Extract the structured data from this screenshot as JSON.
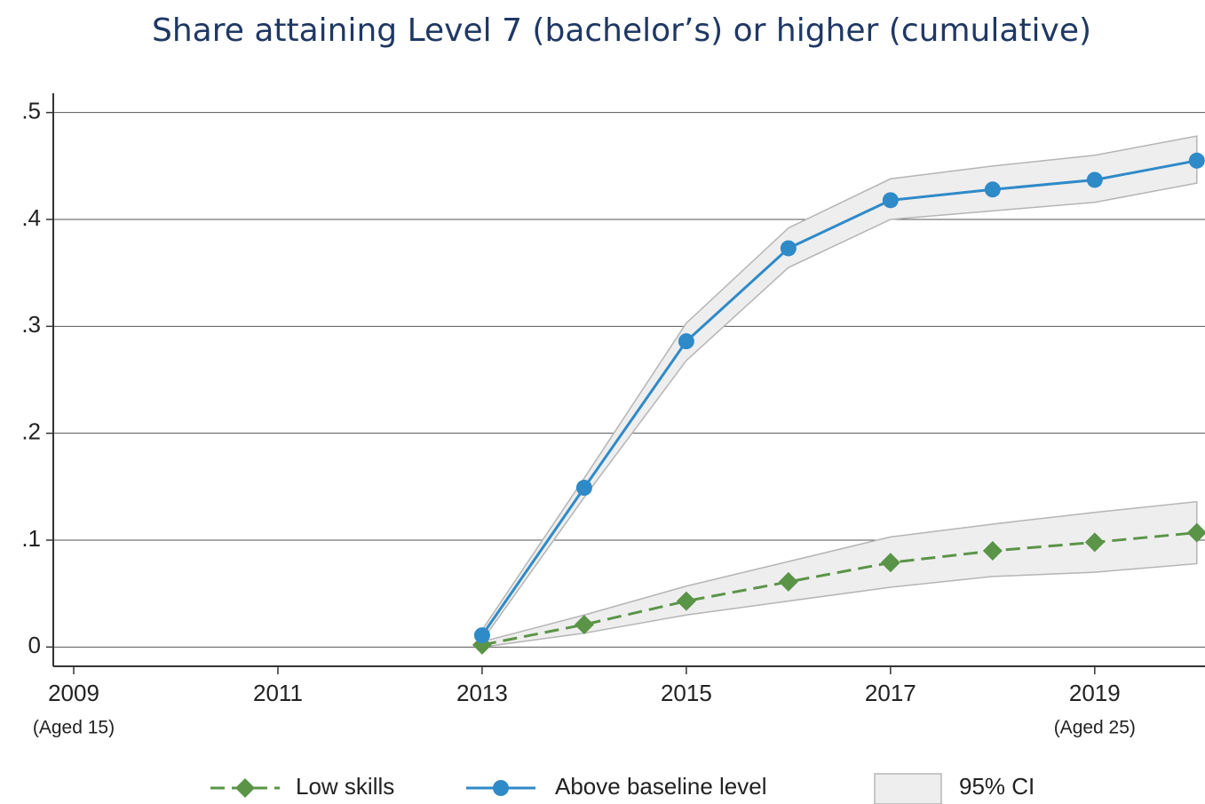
{
  "chart_data": {
    "type": "line",
    "title": "Share attaining Level 7 (bachelor’s) or higher (cumulative)",
    "x": [
      2013,
      2014,
      2015,
      2016,
      2017,
      2018,
      2019,
      2020
    ],
    "series": [
      {
        "name": "Low skills",
        "color": "#5a9447",
        "marker": "diamond",
        "dashed": true,
        "values": [
          0.002,
          0.021,
          0.043,
          0.061,
          0.079,
          0.09,
          0.098,
          0.107
        ],
        "ci_lower": [
          0.0,
          0.013,
          0.03,
          0.043,
          0.056,
          0.066,
          0.07,
          0.078
        ],
        "ci_upper": [
          0.005,
          0.03,
          0.057,
          0.08,
          0.103,
          0.115,
          0.126,
          0.136
        ]
      },
      {
        "name": "Above baseline level",
        "color": "#2f8ac8",
        "marker": "circle",
        "dashed": false,
        "values": [
          0.011,
          0.149,
          0.286,
          0.373,
          0.418,
          0.428,
          0.437,
          0.455
        ],
        "ci_lower": [
          0.006,
          0.14,
          0.268,
          0.355,
          0.4,
          0.408,
          0.416,
          0.434
        ],
        "ci_upper": [
          0.016,
          0.158,
          0.303,
          0.392,
          0.438,
          0.45,
          0.46,
          0.478
        ]
      }
    ],
    "ci_label": "95% CI",
    "ci_color": "#eeeeee",
    "xlim": [
      2008.8,
      2020.08
    ],
    "xticks": [
      2009,
      2011,
      2013,
      2015,
      2017,
      2019
    ],
    "ylim": [
      -0.018,
      0.518
    ],
    "yticks": [
      0,
      {
        "value": 0.1,
        "label": ".1"
      },
      {
        "value": 0.2,
        "label": ".2"
      },
      {
        "value": 0.3,
        "label": ".3"
      },
      {
        "value": 0.4,
        "label": ".4"
      },
      {
        "value": 0.5,
        "label": ".5"
      }
    ],
    "grid": true,
    "annotations": [
      {
        "x": 2009,
        "text": "(Aged 15)"
      },
      {
        "x": 2019,
        "text": "(Aged 25)"
      }
    ]
  }
}
